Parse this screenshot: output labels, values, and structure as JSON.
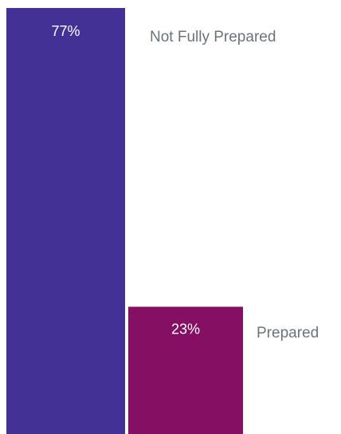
{
  "chart_data": {
    "type": "bar",
    "title": "",
    "xlabel": "",
    "ylabel": "",
    "categories": [
      "Not Fully Prepared",
      "Prepared"
    ],
    "values": [
      77,
      23
    ],
    "value_labels": [
      "77%",
      "23%"
    ],
    "colors": [
      "#443195",
      "#850f63"
    ],
    "label_color": "#6d7378",
    "legend": "none",
    "grid": false
  }
}
